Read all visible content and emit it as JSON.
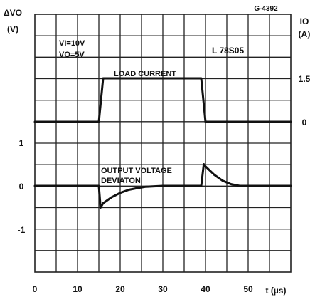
{
  "chart_data": {
    "type": "line",
    "title": "L 78S05",
    "figure_id": "G-4392",
    "conditions": [
      "VI=10V",
      "VO=5V"
    ],
    "left_axis": {
      "label_main": "ΔVO",
      "label_unit": "(V)",
      "ticks": [
        1,
        0,
        -1
      ],
      "tick_labels": [
        "1",
        "0",
        "-1"
      ]
    },
    "right_axis": {
      "label_main": "IO",
      "label_unit": "(A)",
      "ticks": [
        1.5,
        0
      ],
      "tick_labels": [
        "1.5",
        "0"
      ]
    },
    "x_axis": {
      "label": "t (µs)",
      "ticks": [
        0,
        10,
        20,
        30,
        40,
        50
      ],
      "tick_labels": [
        "0",
        "10",
        "20",
        "30",
        "40",
        "50"
      ],
      "range": [
        0,
        60
      ]
    },
    "series": [
      {
        "name": "LOAD CURRENT",
        "axis": "right",
        "x": [
          0,
          15,
          16,
          39,
          40,
          60
        ],
        "y": [
          0,
          0,
          1.5,
          1.5,
          0,
          0
        ]
      },
      {
        "name": "OUTPUT VOLTAGE DEVIATON",
        "axis": "left",
        "x": [
          0,
          15,
          15.4,
          16,
          18,
          20,
          22,
          24,
          26,
          30,
          39,
          39.6,
          40,
          42,
          44,
          46,
          48,
          60
        ],
        "y": [
          0,
          0,
          -0.5,
          -0.4,
          -0.26,
          -0.16,
          -0.09,
          -0.05,
          -0.02,
          0,
          0,
          0.5,
          0.45,
          0.26,
          0.12,
          0.04,
          0,
          0
        ]
      }
    ]
  }
}
